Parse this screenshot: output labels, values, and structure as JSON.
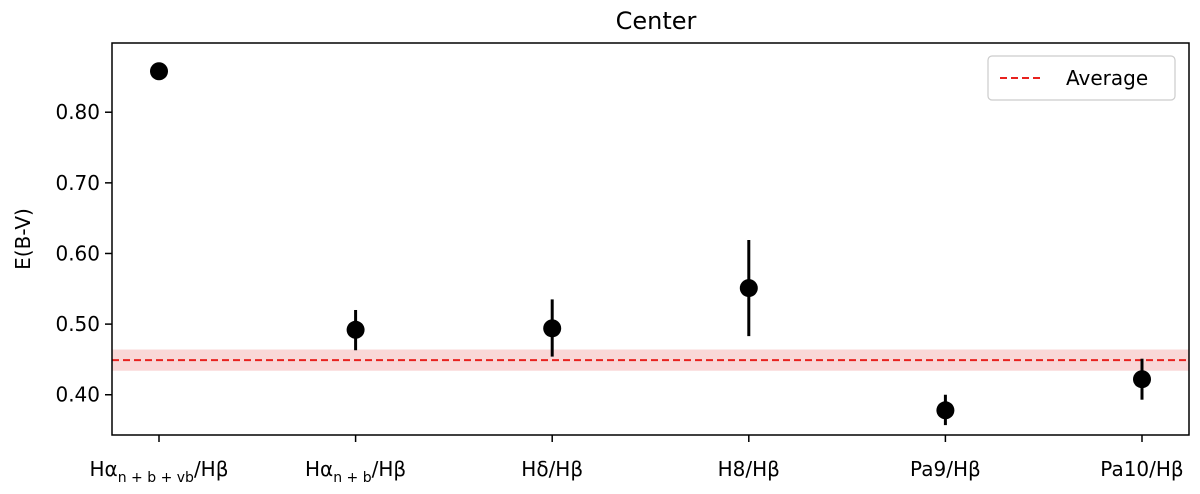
{
  "chart_data": {
    "type": "scatter",
    "title": "Center",
    "xlabel": "",
    "ylabel": "E(B-V)",
    "categories": [
      {
        "base": "Hα",
        "sub": "n + b + vb",
        "rest": "/Hβ"
      },
      {
        "base": "Hα",
        "sub": "n + b",
        "rest": "/Hβ"
      },
      {
        "base": "Hδ",
        "sub": "",
        "rest": "/Hβ"
      },
      {
        "base": "H8",
        "sub": "",
        "rest": "/Hβ"
      },
      {
        "base": "Pa9",
        "sub": "",
        "rest": "/Hβ"
      },
      {
        "base": "Pa10",
        "sub": "",
        "rest": "/Hβ"
      }
    ],
    "values": [
      0.858,
      0.492,
      0.494,
      0.551,
      0.378,
      0.422
    ],
    "err_low": [
      0.0,
      0.029,
      0.04,
      0.068,
      0.021,
      0.029
    ],
    "err_high": [
      0.0,
      0.028,
      0.041,
      0.068,
      0.022,
      0.029
    ],
    "y_ticks": [
      "0.40",
      "0.50",
      "0.60",
      "0.70",
      "0.80"
    ],
    "y_tick_values": [
      0.4,
      0.5,
      0.6,
      0.7,
      0.8
    ],
    "ylim": [
      0.343,
      0.898
    ],
    "average": {
      "name": "Average",
      "value": 0.449,
      "band": [
        0.434,
        0.464
      ]
    },
    "legend_position": "upper right",
    "grid": false,
    "colors": {
      "points": "#000000",
      "average_line": "#e8221f",
      "average_band": "#f6c6c6"
    }
  }
}
